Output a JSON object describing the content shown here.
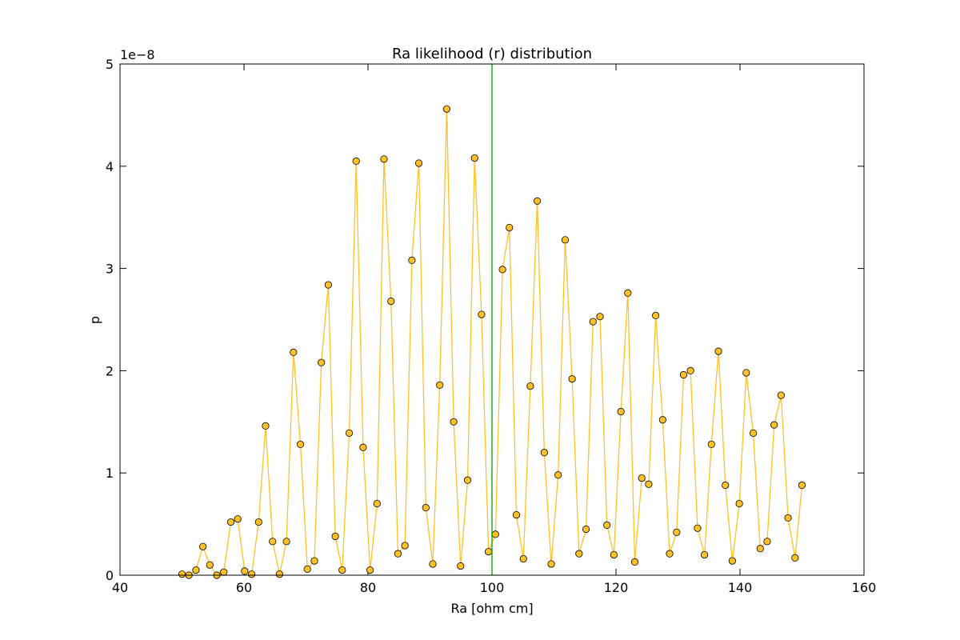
{
  "chart_data": {
    "type": "line",
    "title": "Ra likelihood (r) distribution",
    "x_label": "Ra [ohm cm]",
    "y_label": "p",
    "y_offset_label": "1e−8",
    "x": [
      50,
      51.12,
      52.25,
      53.37,
      54.49,
      55.62,
      56.74,
      57.87,
      58.99,
      60.11,
      61.24,
      62.36,
      63.48,
      64.61,
      65.73,
      66.85,
      67.98,
      69.1,
      70.22,
      71.35,
      72.47,
      73.6,
      74.72,
      75.84,
      76.97,
      78.09,
      79.21,
      80.34,
      81.46,
      82.58,
      83.71,
      84.83,
      85.96,
      87.08,
      88.2,
      89.33,
      90.45,
      91.57,
      92.7,
      93.82,
      94.94,
      96.07,
      97.19,
      98.31,
      99.44,
      100.56,
      101.69,
      102.81,
      103.93,
      105.06,
      106.18,
      107.3,
      108.43,
      109.55,
      110.67,
      111.8,
      112.92,
      114.04,
      115.17,
      116.29,
      117.42,
      118.54,
      119.66,
      120.79,
      121.91,
      123.03,
      124.16,
      125.28,
      126.4,
      127.53,
      128.65,
      129.78,
      130.9,
      132.02,
      133.15,
      134.27,
      135.39,
      136.52,
      137.64,
      138.76,
      139.89,
      141.01,
      142.13,
      143.26,
      144.38,
      145.51,
      146.63,
      147.75,
      148.88,
      150
    ],
    "values": [
      0.01,
      0.0,
      0.05,
      0.28,
      0.1,
      0.0,
      0.03,
      0.52,
      0.55,
      0.04,
      0.01,
      0.52,
      1.46,
      0.33,
      0.01,
      0.33,
      2.18,
      1.28,
      0.06,
      0.14,
      2.08,
      2.84,
      0.38,
      0.05,
      1.39,
      4.05,
      1.25,
      0.05,
      0.7,
      4.07,
      2.68,
      0.21,
      0.29,
      3.08,
      4.03,
      0.66,
      0.11,
      1.86,
      4.56,
      1.5,
      0.09,
      0.93,
      4.08,
      2.55,
      0.23,
      0.4,
      2.99,
      3.4,
      0.59,
      0.16,
      1.85,
      3.66,
      1.2,
      0.11,
      0.98,
      3.28,
      1.92,
      0.21,
      0.45,
      2.48,
      2.53,
      0.49,
      0.2,
      1.6,
      2.76,
      0.13,
      0.95,
      0.89,
      2.54,
      1.52,
      0.21,
      0.42,
      1.96,
      2.0,
      0.46,
      0.2,
      1.28,
      2.19,
      0.88,
      0.14,
      0.7,
      1.98,
      1.39,
      0.26,
      0.33,
      1.47,
      1.76,
      0.56,
      0.17,
      0.88
    ],
    "color": "#ffc125",
    "marker_edge_color": "#000000",
    "vline": 100,
    "vline_color": "#00a000",
    "xlim": [
      40,
      160
    ],
    "xticks": [
      40,
      60,
      80,
      100,
      120,
      140,
      160
    ],
    "ylim": [
      0,
      5
    ],
    "yticks": [
      0,
      1,
      2,
      3,
      4,
      5
    ]
  }
}
